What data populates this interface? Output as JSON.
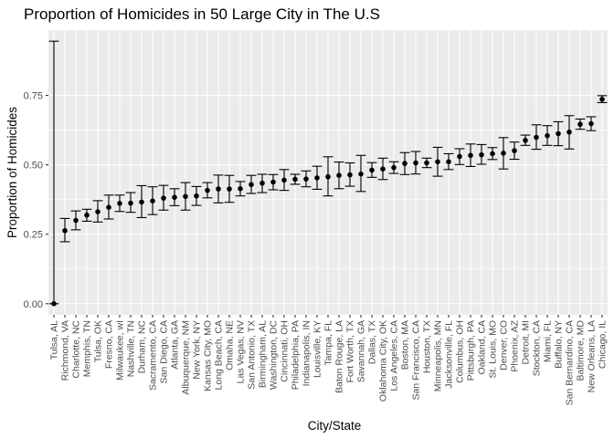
{
  "chart_data": {
    "type": "scatter",
    "title": "Proportion of Homicides in 50 Large City in The U.S",
    "xlabel": "City/State",
    "ylabel": "Proportion of Homicides",
    "ylim": [
      -0.04,
      0.985
    ],
    "yticks": [
      "0.00",
      "0.25",
      "0.50",
      "0.75"
    ],
    "yticks_values": [
      0,
      0.25,
      0.5,
      0.75
    ],
    "grid": true,
    "background": "#ebebeb",
    "point_color": "#000000",
    "categories": [
      "Tulsa, AL",
      "Richmond, VA",
      "Charlotte, NC",
      "Memphis, TN",
      "Tulsa, OK",
      "Fresno, CA",
      "Milwaukee, wI",
      "Nashville, TN",
      "Durham, NC",
      "Sacramento, CA",
      "San Diego, CA",
      "Atlanta, GA",
      "Albuquerque, NM",
      "New York, NY",
      "Kansas City, MO",
      "Long Beach, CA",
      "Omaha, NE",
      "Las Vegas, NV",
      "San Antonio, TX",
      "Birmingham, AL",
      "Washington, DC",
      "Cincinnati, OH",
      "Philadelphia, PA",
      "Indianapolis, IN",
      "Louisville, KY",
      "Tampa, FL",
      "Baton Rouge, LA",
      "Fort Worth, TX",
      "Savannah, GA",
      "Dallas, TX",
      "Oklahoma City, OK",
      "Los Angeles, CA",
      "Boston, MA",
      "San Francisco, CA",
      "Houston, TX",
      "Minneapolis, MN",
      "Jacksonville, FL",
      "Columbus, OH",
      "Pittsburgh, PA",
      "Oakland, CA",
      "St. Louis, MO",
      "Denver, CO",
      "Phoenix, AZ",
      "Detroit, MI",
      "Stockton, CA",
      "Miami, FL",
      "Buffalo, NY",
      "San Bernardino, CA",
      "Baltimore, MD",
      "New Orleans, LA",
      "Chicago, IL"
    ],
    "estimate": [
      0.0,
      0.263,
      0.3,
      0.319,
      0.331,
      0.347,
      0.361,
      0.362,
      0.366,
      0.37,
      0.38,
      0.383,
      0.386,
      0.388,
      0.408,
      0.413,
      0.413,
      0.414,
      0.429,
      0.434,
      0.438,
      0.445,
      0.448,
      0.449,
      0.453,
      0.457,
      0.462,
      0.464,
      0.467,
      0.481,
      0.485,
      0.49,
      0.505,
      0.507,
      0.507,
      0.511,
      0.511,
      0.53,
      0.534,
      0.536,
      0.54,
      0.542,
      0.551,
      0.588,
      0.599,
      0.605,
      0.612,
      0.618,
      0.646,
      0.648,
      0.736
    ],
    "lower": [
      0.0,
      0.223,
      0.266,
      0.297,
      0.294,
      0.305,
      0.332,
      0.329,
      0.31,
      0.321,
      0.337,
      0.353,
      0.337,
      0.354,
      0.381,
      0.363,
      0.365,
      0.388,
      0.397,
      0.4,
      0.41,
      0.408,
      0.43,
      0.421,
      0.412,
      0.388,
      0.414,
      0.423,
      0.404,
      0.455,
      0.447,
      0.469,
      0.465,
      0.467,
      0.49,
      0.459,
      0.483,
      0.501,
      0.494,
      0.502,
      0.519,
      0.485,
      0.52,
      0.57,
      0.556,
      0.57,
      0.569,
      0.557,
      0.628,
      0.623,
      0.724
    ],
    "upper": [
      0.945,
      0.307,
      0.334,
      0.34,
      0.371,
      0.391,
      0.391,
      0.4,
      0.425,
      0.421,
      0.426,
      0.414,
      0.436,
      0.422,
      0.436,
      0.463,
      0.462,
      0.44,
      0.462,
      0.466,
      0.465,
      0.483,
      0.466,
      0.478,
      0.495,
      0.529,
      0.51,
      0.507,
      0.534,
      0.508,
      0.524,
      0.511,
      0.544,
      0.548,
      0.524,
      0.563,
      0.54,
      0.558,
      0.575,
      0.573,
      0.562,
      0.598,
      0.582,
      0.607,
      0.644,
      0.641,
      0.655,
      0.677,
      0.665,
      0.673,
      0.749
    ]
  }
}
